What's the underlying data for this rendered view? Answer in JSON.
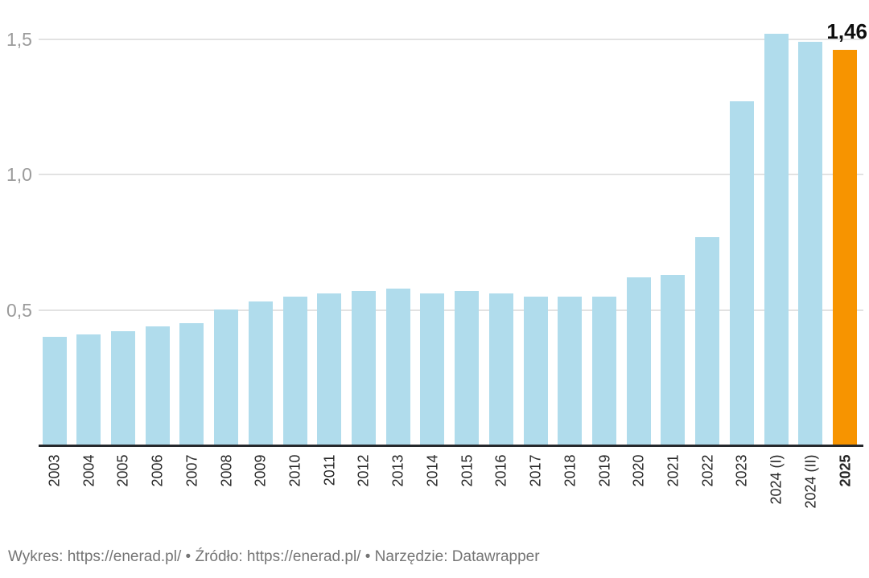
{
  "chart_data": {
    "type": "bar",
    "categories": [
      "2003",
      "2004",
      "2005",
      "2006",
      "2007",
      "2008",
      "2009",
      "2010",
      "2011",
      "2012",
      "2013",
      "2014",
      "2015",
      "2016",
      "2017",
      "2018",
      "2019",
      "2020",
      "2021",
      "2022",
      "2023",
      "2024 (I)",
      "2024 (II)",
      "2025"
    ],
    "values": [
      0.4,
      0.41,
      0.42,
      0.44,
      0.45,
      0.5,
      0.53,
      0.55,
      0.56,
      0.57,
      0.58,
      0.56,
      0.57,
      0.56,
      0.55,
      0.55,
      0.55,
      0.62,
      0.63,
      0.77,
      1.27,
      1.52,
      1.49,
      1.46
    ],
    "title": "",
    "xlabel": "",
    "ylabel": "",
    "ylim": [
      0,
      1.5
    ],
    "grid": true,
    "legend_position": "none",
    "yticks": [
      {
        "value": 0.5,
        "label": "0,5"
      },
      {
        "value": 1.0,
        "label": "1,0"
      },
      {
        "value": 1.5,
        "label": "1,5"
      }
    ],
    "highlight_index": 23,
    "highlight_value_label": "1,46",
    "bar_color": "#b0dcec",
    "highlight_color": "#f79400"
  },
  "footer": {
    "chart_label": "Wykres: ",
    "chart_url": "https://enerad.pl/",
    "separator1": " • ",
    "source_label": "Źródło: ",
    "source_url": "https://enerad.pl/",
    "separator2": " • ",
    "tool_label": "Narzędzie: ",
    "tool_name": "Datawrapper"
  }
}
